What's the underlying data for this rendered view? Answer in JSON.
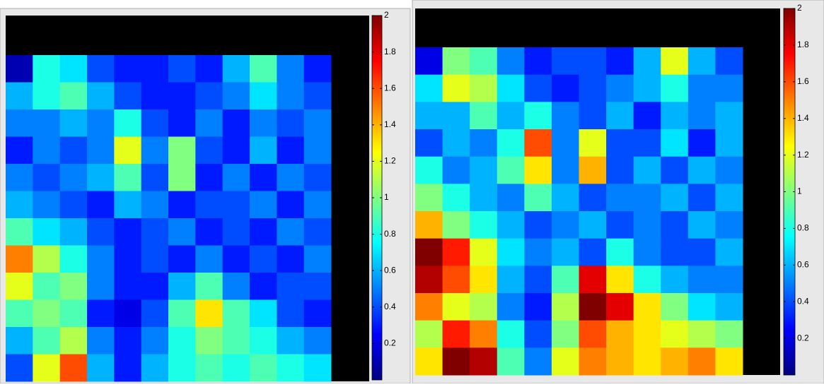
{
  "chart_data": [
    {
      "type": "heatmap",
      "colormap": "jet",
      "clim": [
        0,
        2
      ],
      "cticks": [
        0.2,
        0.4,
        0.6,
        0.8,
        1,
        1.2,
        1.4,
        1.6,
        1.8,
        2
      ],
      "values": [
        [
          0.1,
          0.8,
          0.7,
          0.4,
          0.3,
          0.3,
          0.4,
          0.3,
          0.6,
          0.9,
          0.5,
          0.3
        ],
        [
          0.6,
          0.8,
          0.9,
          0.6,
          0.4,
          0.3,
          0.3,
          0.4,
          0.5,
          0.7,
          0.5,
          0.4
        ],
        [
          0.5,
          0.5,
          0.6,
          0.5,
          0.8,
          0.4,
          0.3,
          0.5,
          0.3,
          0.5,
          0.4,
          0.5
        ],
        [
          0.3,
          0.5,
          0.4,
          0.5,
          1.2,
          0.5,
          1.0,
          0.4,
          0.3,
          0.6,
          0.3,
          0.5
        ],
        [
          0.5,
          0.4,
          0.5,
          0.6,
          0.9,
          0.4,
          1.0,
          0.3,
          0.5,
          0.3,
          0.5,
          0.4
        ],
        [
          0.6,
          0.5,
          0.4,
          0.3,
          0.6,
          0.5,
          0.3,
          0.4,
          0.4,
          0.5,
          0.3,
          0.5
        ],
        [
          0.9,
          0.7,
          0.6,
          0.4,
          0.3,
          0.4,
          0.5,
          0.3,
          0.4,
          0.3,
          0.5,
          0.4
        ],
        [
          1.5,
          1.1,
          0.8,
          0.5,
          0.3,
          0.4,
          0.3,
          0.5,
          0.3,
          0.4,
          0.3,
          0.5
        ],
        [
          1.2,
          0.9,
          1.0,
          0.5,
          0.3,
          0.3,
          0.6,
          0.9,
          0.5,
          0.3,
          0.4,
          0.4
        ],
        [
          0.9,
          1.0,
          0.9,
          0.3,
          0.2,
          0.4,
          0.9,
          1.3,
          0.9,
          0.7,
          0.4,
          0.3
        ],
        [
          0.6,
          0.9,
          1.1,
          0.5,
          0.3,
          0.5,
          0.8,
          1.0,
          0.9,
          0.8,
          0.6,
          0.5
        ],
        [
          0.4,
          1.2,
          1.6,
          0.6,
          0.3,
          0.6,
          0.8,
          0.9,
          0.8,
          0.9,
          0.8,
          0.7
        ]
      ]
    },
    {
      "type": "heatmap",
      "colormap": "jet",
      "clim": [
        0,
        2
      ],
      "cticks": [
        0.2,
        0.4,
        0.6,
        0.8,
        1,
        1.2,
        1.4,
        1.6,
        1.8,
        2
      ],
      "values": [
        [
          0.2,
          1.0,
          0.9,
          0.5,
          0.3,
          0.4,
          0.4,
          0.3,
          0.6,
          1.2,
          0.6,
          0.4
        ],
        [
          0.7,
          1.2,
          1.1,
          0.7,
          0.4,
          0.3,
          0.4,
          0.5,
          0.6,
          0.8,
          0.5,
          0.5
        ],
        [
          0.6,
          0.6,
          0.9,
          0.6,
          0.8,
          0.5,
          0.4,
          0.6,
          0.3,
          0.6,
          0.5,
          0.6
        ],
        [
          0.4,
          0.6,
          0.5,
          0.8,
          1.6,
          0.5,
          1.2,
          0.4,
          0.4,
          0.7,
          0.3,
          0.6
        ],
        [
          0.8,
          0.5,
          0.6,
          0.9,
          1.3,
          0.5,
          1.4,
          0.4,
          0.6,
          0.4,
          0.6,
          0.5
        ],
        [
          1.0,
          0.8,
          0.6,
          0.5,
          0.9,
          0.6,
          0.4,
          0.5,
          0.5,
          0.6,
          0.4,
          0.6
        ],
        [
          1.4,
          1.0,
          0.8,
          0.6,
          0.4,
          0.5,
          0.6,
          0.4,
          0.5,
          0.4,
          0.6,
          0.5
        ],
        [
          2.0,
          1.7,
          1.2,
          0.7,
          0.5,
          0.6,
          0.4,
          0.8,
          0.5,
          0.4,
          0.4,
          0.6
        ],
        [
          1.9,
          1.6,
          1.3,
          0.6,
          0.4,
          0.9,
          1.8,
          1.3,
          0.8,
          0.6,
          0.5,
          0.5
        ],
        [
          1.5,
          1.2,
          1.1,
          0.5,
          0.3,
          1.1,
          2.0,
          1.8,
          1.3,
          1.0,
          0.7,
          0.6
        ],
        [
          1.1,
          1.7,
          1.5,
          0.8,
          0.4,
          1.0,
          1.6,
          1.4,
          1.3,
          1.2,
          1.1,
          1.0
        ],
        [
          1.3,
          2.0,
          1.9,
          0.9,
          0.5,
          1.2,
          1.5,
          1.4,
          1.3,
          1.4,
          1.5,
          1.3
        ]
      ]
    }
  ]
}
